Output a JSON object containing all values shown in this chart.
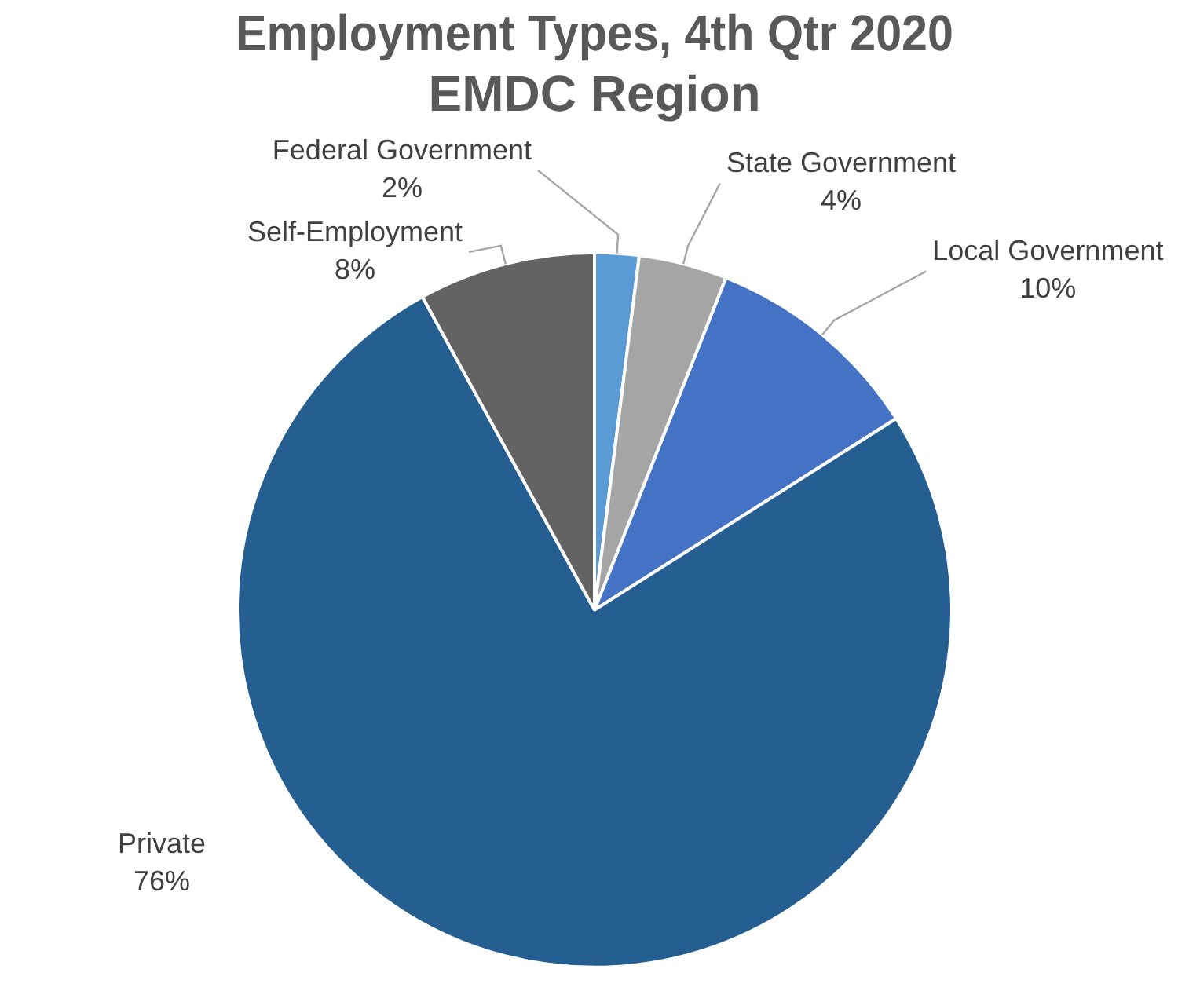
{
  "chart_data": {
    "type": "pie",
    "title": [
      "Employment Types, 4th Qtr 2020",
      "EMDC Region"
    ],
    "categories": [
      "Federal Government",
      "State Government",
      "Local Government",
      "Private",
      "Self-Employment"
    ],
    "values": [
      2,
      4,
      10,
      76,
      8
    ],
    "colors": [
      "#5b9bd5",
      "#a5a5a5",
      "#4472c4",
      "#255e91",
      "#636363"
    ],
    "value_labels": [
      "2%",
      "4%",
      "10%",
      "76%",
      "8%"
    ],
    "legend": false
  }
}
